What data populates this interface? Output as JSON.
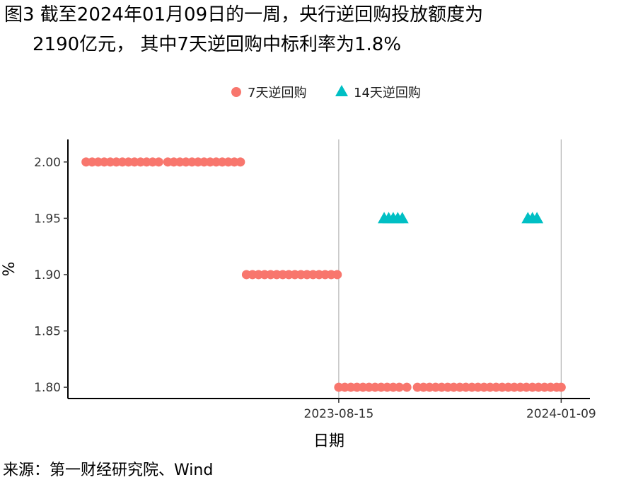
{
  "figure": {
    "title_line1": "图3  截至2024年01月09日的一周，央行逆回购投放额度为",
    "title_line2": "2190亿元， 其中7天逆回购中标利率为1.8%",
    "source": "来源：第一财经研究院、Wind"
  },
  "chart_data": {
    "type": "scatter",
    "xlabel": "日期",
    "ylabel": "%",
    "ylim": [
      1.79,
      2.02
    ],
    "yticks": [
      1.8,
      1.85,
      1.9,
      1.95,
      2.0
    ],
    "ytick_labels": [
      "1.80",
      "1.85",
      "1.90",
      "1.95",
      "2.00"
    ],
    "xlim": [
      "2023-02-17",
      "2024-01-28"
    ],
    "xticks": [
      "2023-08-15",
      "2024-01-09"
    ],
    "xtick_labels": [
      "2023-08-15",
      "2024-01-09"
    ],
    "grid": "vertical lines at x ticks",
    "legend_position": "top",
    "series": [
      {
        "name": "7天逆回购",
        "marker": "circle",
        "color": "#F8766D",
        "points": [
          {
            "x": "2023-03-01",
            "y": 2.0
          },
          {
            "x": "2023-03-05",
            "y": 2.0
          },
          {
            "x": "2023-03-09",
            "y": 2.0
          },
          {
            "x": "2023-03-13",
            "y": 2.0
          },
          {
            "x": "2023-03-17",
            "y": 2.0
          },
          {
            "x": "2023-03-21",
            "y": 2.0
          },
          {
            "x": "2023-03-25",
            "y": 2.0
          },
          {
            "x": "2023-03-29",
            "y": 2.0
          },
          {
            "x": "2023-04-02",
            "y": 2.0
          },
          {
            "x": "2023-04-06",
            "y": 2.0
          },
          {
            "x": "2023-04-10",
            "y": 2.0
          },
          {
            "x": "2023-04-14",
            "y": 2.0
          },
          {
            "x": "2023-04-18",
            "y": 2.0
          },
          {
            "x": "2023-04-24",
            "y": 2.0
          },
          {
            "x": "2023-04-28",
            "y": 2.0
          },
          {
            "x": "2023-05-02",
            "y": 2.0
          },
          {
            "x": "2023-05-06",
            "y": 2.0
          },
          {
            "x": "2023-05-10",
            "y": 2.0
          },
          {
            "x": "2023-05-14",
            "y": 2.0
          },
          {
            "x": "2023-05-18",
            "y": 2.0
          },
          {
            "x": "2023-05-22",
            "y": 2.0
          },
          {
            "x": "2023-05-26",
            "y": 2.0
          },
          {
            "x": "2023-05-30",
            "y": 2.0
          },
          {
            "x": "2023-06-03",
            "y": 2.0
          },
          {
            "x": "2023-06-07",
            "y": 2.0
          },
          {
            "x": "2023-06-11",
            "y": 2.0
          },
          {
            "x": "2023-06-15",
            "y": 1.9
          },
          {
            "x": "2023-06-19",
            "y": 1.9
          },
          {
            "x": "2023-06-23",
            "y": 1.9
          },
          {
            "x": "2023-06-27",
            "y": 1.9
          },
          {
            "x": "2023-07-01",
            "y": 1.9
          },
          {
            "x": "2023-07-05",
            "y": 1.9
          },
          {
            "x": "2023-07-09",
            "y": 1.9
          },
          {
            "x": "2023-07-13",
            "y": 1.9
          },
          {
            "x": "2023-07-17",
            "y": 1.9
          },
          {
            "x": "2023-07-21",
            "y": 1.9
          },
          {
            "x": "2023-07-25",
            "y": 1.9
          },
          {
            "x": "2023-07-29",
            "y": 1.9
          },
          {
            "x": "2023-08-02",
            "y": 1.9
          },
          {
            "x": "2023-08-06",
            "y": 1.9
          },
          {
            "x": "2023-08-10",
            "y": 1.9
          },
          {
            "x": "2023-08-14",
            "y": 1.9
          },
          {
            "x": "2023-08-15",
            "y": 1.8
          },
          {
            "x": "2023-08-19",
            "y": 1.8
          },
          {
            "x": "2023-08-23",
            "y": 1.8
          },
          {
            "x": "2023-08-27",
            "y": 1.8
          },
          {
            "x": "2023-08-31",
            "y": 1.8
          },
          {
            "x": "2023-09-04",
            "y": 1.8
          },
          {
            "x": "2023-09-08",
            "y": 1.8
          },
          {
            "x": "2023-09-12",
            "y": 1.8
          },
          {
            "x": "2023-09-16",
            "y": 1.8
          },
          {
            "x": "2023-09-20",
            "y": 1.8
          },
          {
            "x": "2023-09-24",
            "y": 1.8
          },
          {
            "x": "2023-09-29",
            "y": 1.8
          },
          {
            "x": "2023-10-06",
            "y": 1.8
          },
          {
            "x": "2023-10-10",
            "y": 1.8
          },
          {
            "x": "2023-10-14",
            "y": 1.8
          },
          {
            "x": "2023-10-18",
            "y": 1.8
          },
          {
            "x": "2023-10-22",
            "y": 1.8
          },
          {
            "x": "2023-10-26",
            "y": 1.8
          },
          {
            "x": "2023-10-30",
            "y": 1.8
          },
          {
            "x": "2023-11-03",
            "y": 1.8
          },
          {
            "x": "2023-11-07",
            "y": 1.8
          },
          {
            "x": "2023-11-11",
            "y": 1.8
          },
          {
            "x": "2023-11-15",
            "y": 1.8
          },
          {
            "x": "2023-11-19",
            "y": 1.8
          },
          {
            "x": "2023-11-23",
            "y": 1.8
          },
          {
            "x": "2023-11-27",
            "y": 1.8
          },
          {
            "x": "2023-12-01",
            "y": 1.8
          },
          {
            "x": "2023-12-05",
            "y": 1.8
          },
          {
            "x": "2023-12-09",
            "y": 1.8
          },
          {
            "x": "2023-12-13",
            "y": 1.8
          },
          {
            "x": "2023-12-17",
            "y": 1.8
          },
          {
            "x": "2023-12-21",
            "y": 1.8
          },
          {
            "x": "2023-12-25",
            "y": 1.8
          },
          {
            "x": "2023-12-29",
            "y": 1.8
          },
          {
            "x": "2024-01-02",
            "y": 1.8
          },
          {
            "x": "2024-01-06",
            "y": 1.8
          },
          {
            "x": "2024-01-09",
            "y": 1.8
          }
        ]
      },
      {
        "name": "14天逆回购",
        "marker": "triangle",
        "color": "#00BFC4",
        "points": [
          {
            "x": "2023-09-14",
            "y": 1.95
          },
          {
            "x": "2023-09-17",
            "y": 1.95
          },
          {
            "x": "2023-09-20",
            "y": 1.95
          },
          {
            "x": "2023-09-23",
            "y": 1.95
          },
          {
            "x": "2023-09-26",
            "y": 1.95
          },
          {
            "x": "2023-12-18",
            "y": 1.95
          },
          {
            "x": "2023-12-21",
            "y": 1.95
          },
          {
            "x": "2023-12-24",
            "y": 1.95
          }
        ]
      }
    ]
  }
}
